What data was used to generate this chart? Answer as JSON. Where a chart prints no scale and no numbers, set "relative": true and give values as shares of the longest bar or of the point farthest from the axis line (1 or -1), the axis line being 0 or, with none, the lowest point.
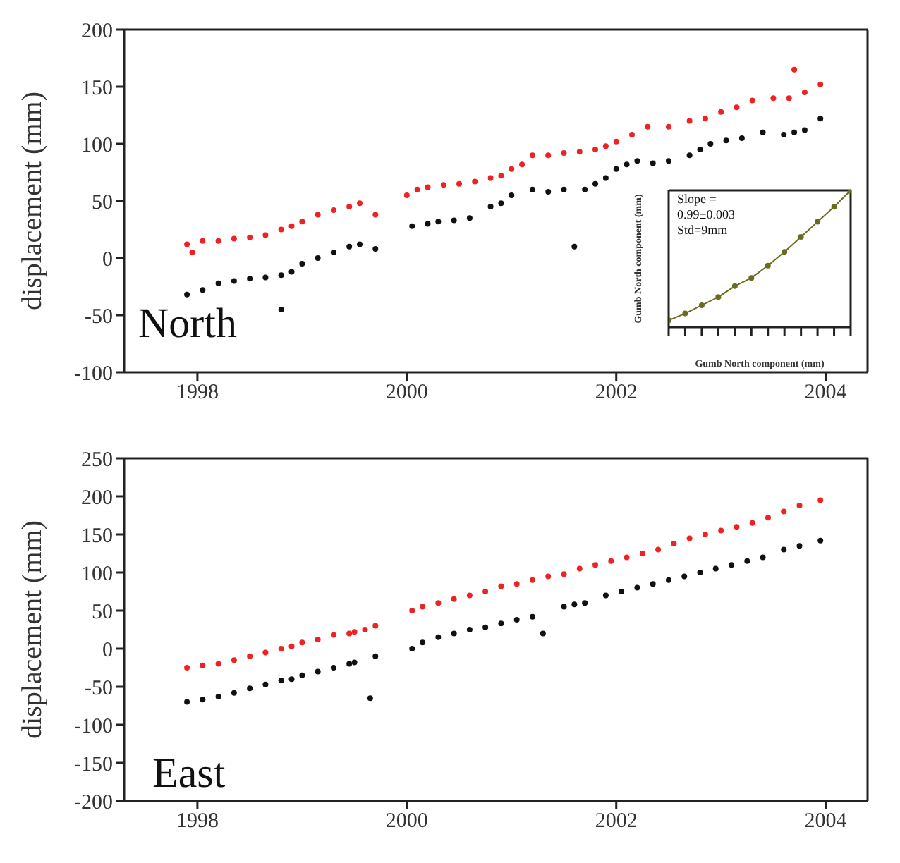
{
  "chart_data": [
    {
      "type": "scatter",
      "ylabel": "displacement (mm)",
      "annotations": [
        "North"
      ],
      "xlim": [
        1997.3,
        2004.4
      ],
      "xticks": [
        1998,
        2000,
        2002,
        2004
      ],
      "ylim": [
        -100,
        200
      ],
      "yticks": [
        -100,
        -50,
        0,
        50,
        100,
        150,
        200
      ],
      "marker": "circle",
      "grid": false,
      "legend": false,
      "series": [
        {
          "color": "#111111",
          "x": [
            1997.9,
            1998.05,
            1998.2,
            1998.35,
            1998.5,
            1998.65,
            1998.8,
            1998.8,
            1998.9,
            1999.0,
            1999.15,
            1999.3,
            1999.45,
            1999.55,
            1999.7,
            2000.05,
            2000.2,
            2000.3,
            2000.45,
            2000.6,
            2000.8,
            2000.9,
            2001.0,
            2001.2,
            2001.35,
            2001.5,
            2001.6,
            2001.7,
            2001.8,
            2001.9,
            2002.0,
            2002.1,
            2002.2,
            2002.35,
            2002.5,
            2002.7,
            2002.8,
            2002.9,
            2003.05,
            2003.2,
            2003.4,
            2003.6,
            2003.7,
            2003.8,
            2003.95
          ],
          "values": [
            -32,
            -28,
            -22,
            -20,
            -18,
            -17,
            -15,
            -45,
            -12,
            -5,
            0,
            5,
            10,
            12,
            8,
            28,
            30,
            32,
            33,
            35,
            45,
            48,
            55,
            60,
            58,
            60,
            10,
            60,
            65,
            70,
            78,
            82,
            85,
            83,
            85,
            90,
            95,
            100,
            103,
            105,
            110,
            108,
            110,
            112,
            122
          ]
        },
        {
          "color": "#ee2222",
          "x": [
            1997.9,
            1997.95,
            1998.05,
            1998.2,
            1998.35,
            1998.5,
            1998.65,
            1998.8,
            1998.9,
            1999.0,
            1999.15,
            1999.3,
            1999.45,
            1999.55,
            1999.7,
            2000.0,
            2000.1,
            2000.2,
            2000.35,
            2000.5,
            2000.65,
            2000.8,
            2000.9,
            2001.0,
            2001.1,
            2001.2,
            2001.35,
            2001.5,
            2001.65,
            2001.8,
            2001.9,
            2002.0,
            2002.15,
            2002.3,
            2002.5,
            2002.7,
            2002.85,
            2003.0,
            2003.15,
            2003.3,
            2003.5,
            2003.65,
            2003.7,
            2003.8,
            2003.95
          ],
          "values": [
            12,
            5,
            15,
            15,
            17,
            18,
            20,
            25,
            28,
            32,
            38,
            42,
            45,
            48,
            38,
            55,
            60,
            62,
            64,
            65,
            67,
            70,
            72,
            78,
            82,
            90,
            90,
            92,
            93,
            95,
            98,
            102,
            108,
            115,
            115,
            120,
            122,
            128,
            132,
            138,
            140,
            140,
            165,
            145,
            152
          ]
        }
      ]
    },
    {
      "type": "scatter",
      "ylabel": "displacement (mm)",
      "annotations": [
        "East"
      ],
      "xlim": [
        1997.3,
        2004.4
      ],
      "xticks": [
        1998,
        2000,
        2002,
        2004
      ],
      "ylim": [
        -200,
        250
      ],
      "yticks": [
        -200,
        -150,
        -100,
        -50,
        0,
        50,
        100,
        150,
        200,
        250
      ],
      "marker": "circle",
      "grid": false,
      "legend": false,
      "series": [
        {
          "color": "#111111",
          "x": [
            1997.9,
            1998.05,
            1998.2,
            1998.35,
            1998.5,
            1998.65,
            1998.8,
            1998.9,
            1999.0,
            1999.15,
            1999.3,
            1999.45,
            1999.5,
            1999.65,
            1999.7,
            2000.05,
            2000.15,
            2000.3,
            2000.45,
            2000.6,
            2000.75,
            2000.9,
            2001.05,
            2001.2,
            2001.3,
            2001.5,
            2001.6,
            2001.7,
            2001.9,
            2002.05,
            2002.2,
            2002.35,
            2002.5,
            2002.65,
            2002.8,
            2002.95,
            2003.1,
            2003.25,
            2003.4,
            2003.6,
            2003.75,
            2003.95
          ],
          "values": [
            -70,
            -67,
            -63,
            -58,
            -52,
            -47,
            -42,
            -40,
            -35,
            -30,
            -25,
            -20,
            -18,
            -65,
            -10,
            0,
            8,
            15,
            20,
            25,
            28,
            33,
            38,
            42,
            20,
            55,
            58,
            60,
            70,
            75,
            80,
            85,
            90,
            95,
            100,
            105,
            110,
            115,
            120,
            130,
            135,
            142
          ]
        },
        {
          "color": "#ee2222",
          "x": [
            1997.9,
            1998.05,
            1998.2,
            1998.35,
            1998.5,
            1998.65,
            1998.8,
            1998.9,
            1999.0,
            1999.15,
            1999.3,
            1999.45,
            1999.5,
            1999.6,
            1999.7,
            2000.05,
            2000.15,
            2000.3,
            2000.45,
            2000.6,
            2000.75,
            2000.9,
            2001.05,
            2001.2,
            2001.35,
            2001.5,
            2001.65,
            2001.8,
            2001.95,
            2002.1,
            2002.25,
            2002.4,
            2002.55,
            2002.7,
            2002.85,
            2003.0,
            2003.15,
            2003.3,
            2003.45,
            2003.6,
            2003.75,
            2003.95
          ],
          "values": [
            -25,
            -22,
            -20,
            -15,
            -10,
            -5,
            0,
            3,
            8,
            12,
            18,
            20,
            22,
            25,
            30,
            50,
            55,
            60,
            65,
            70,
            75,
            82,
            85,
            90,
            95,
            98,
            105,
            110,
            115,
            120,
            125,
            130,
            138,
            145,
            150,
            155,
            160,
            165,
            172,
            180,
            188,
            195
          ]
        }
      ]
    },
    {
      "type": "line",
      "xlabel": "Gumb North component (mm)",
      "ylabel": "Gumb North component (mm)",
      "annotations": [
        "Slope = 0.99±0.003 Std=9mm"
      ],
      "relative": true,
      "marker": "circle",
      "categories": [
        null,
        null,
        null,
        null,
        null,
        null,
        null,
        null,
        null,
        null,
        null,
        null
      ],
      "series": [
        {
          "color": "#6b6b1f",
          "values": [
            0.05,
            0.1,
            0.16,
            0.22,
            0.3,
            0.36,
            0.45,
            0.55,
            0.66,
            0.77,
            0.88,
            1
          ]
        }
      ]
    }
  ]
}
